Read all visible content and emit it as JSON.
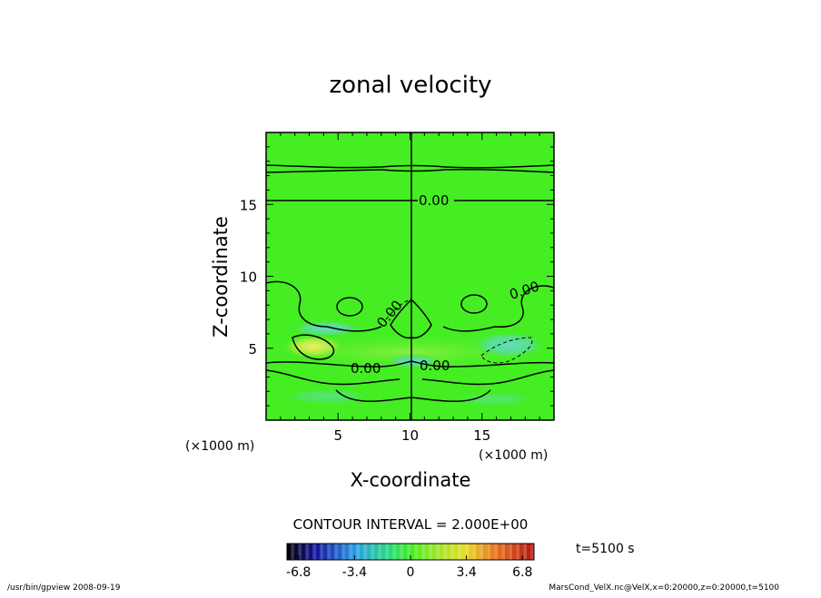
{
  "chart_data": {
    "type": "heatmap",
    "title": "zonal velocity",
    "xlabel": "X-coordinate",
    "ylabel": "Z-coordinate",
    "x_unit": "(×1000 m)",
    "z_unit": "(×1000 m)",
    "xlim": [
      0,
      20
    ],
    "ylim": [
      0,
      20
    ],
    "x_ticks": [
      "5",
      "10",
      "15"
    ],
    "y_ticks": [
      "5",
      "10",
      "15"
    ],
    "contour_labels": [
      "0.00",
      "0.00",
      "0.00",
      "0.00",
      "0.00",
      "0.00"
    ],
    "contour_interval_text": "CONTOUR INTERVAL = 2.000E+00",
    "time_text": "t=5100 s",
    "colorbar": {
      "range": [
        -7.5,
        7.5
      ],
      "tick_labels": [
        "-6.8",
        "-3.4",
        "0",
        "3.4",
        "6.8"
      ],
      "tick_values": [
        -6.8,
        -3.4,
        0,
        3.4,
        6.8
      ]
    },
    "footer_left": "/usr/bin/gpview   2008-09-19",
    "footer_right": "MarsCond_VelX.nc@VelX,x=0:20000,z=0:20000,t=5100"
  }
}
